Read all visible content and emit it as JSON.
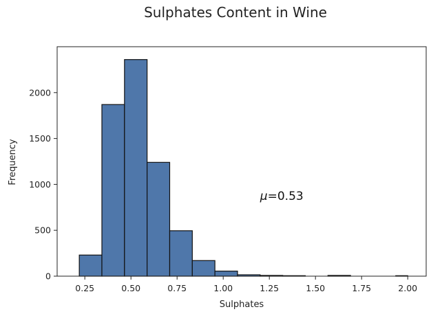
{
  "chart_data": {
    "type": "bar",
    "title": "Sulphates Content in Wine",
    "xlabel": "Sulphates",
    "ylabel": "Frequency",
    "bin_edges": [
      0.22,
      0.3425,
      0.465,
      0.5875,
      0.71,
      0.8325,
      0.955,
      1.0775,
      1.2,
      1.3225,
      1.445,
      1.5675,
      1.69,
      1.8125,
      1.935,
      2.0
    ],
    "values": [
      230,
      1870,
      2360,
      1240,
      495,
      170,
      55,
      15,
      8,
      5,
      0,
      8,
      0,
      0,
      5
    ],
    "xlim": [
      0.1,
      2.1
    ],
    "ylim": [
      0,
      2500
    ],
    "x_ticks": [
      0.25,
      0.5,
      0.75,
      1.0,
      1.25,
      1.5,
      1.75,
      2.0
    ],
    "x_tick_labels": [
      "0.25",
      "0.50",
      "0.75",
      "1.00",
      "1.25",
      "1.50",
      "1.75",
      "2.00"
    ],
    "y_ticks": [
      0,
      500,
      1000,
      1500,
      2000
    ],
    "y_tick_labels": [
      "0",
      "500",
      "1000",
      "1500",
      "2000"
    ],
    "annotation": {
      "symbol": "μ",
      "text": "=0.53",
      "x": 1.2,
      "y": 830
    },
    "grid": false,
    "colors": {
      "bar_fill": "#4f77aa",
      "bar_edge": "#111111",
      "axes": "#222222"
    }
  }
}
